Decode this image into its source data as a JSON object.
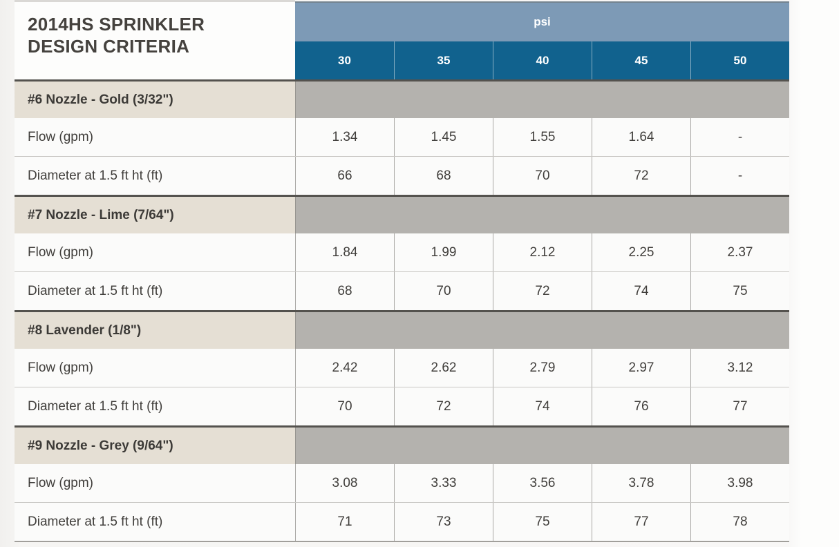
{
  "title": "2014HS SPRINKLER DESIGN CRITERIA",
  "header": {
    "group_label": "psi",
    "pressures": [
      "30",
      "35",
      "40",
      "45",
      "50"
    ]
  },
  "row_labels": {
    "flow": "Flow (gpm)",
    "diameter": "Diameter at 1.5 ft ht (ft)"
  },
  "sections": [
    {
      "label": "#6 Nozzle - Gold (3/32\")",
      "flow": [
        "1.34",
        "1.45",
        "1.55",
        "1.64",
        "-"
      ],
      "diameter": [
        "66",
        "68",
        "70",
        "72",
        "-"
      ]
    },
    {
      "label": "#7 Nozzle - Lime (7/64\")",
      "flow": [
        "1.84",
        "1.99",
        "2.12",
        "2.25",
        "2.37"
      ],
      "diameter": [
        "68",
        "70",
        "72",
        "74",
        "75"
      ]
    },
    {
      "label": "#8 Lavender (1/8\")",
      "flow": [
        "2.42",
        "2.62",
        "2.79",
        "2.97",
        "3.12"
      ],
      "diameter": [
        "70",
        "72",
        "74",
        "76",
        "77"
      ]
    },
    {
      "label": "#9 Nozzle - Grey (9/64\")",
      "flow": [
        "3.08",
        "3.33",
        "3.56",
        "3.78",
        "3.98"
      ],
      "diameter": [
        "71",
        "73",
        "75",
        "77",
        "78"
      ]
    }
  ],
  "colors": {
    "psi_band": "#7d9ab6",
    "pressure_band": "#11628e",
    "section_label_bg": "#e5dfd4",
    "section_data_bg": "#b4b2ae",
    "section_border": "#54524e",
    "table_bottom_border": "#a19f9b",
    "cell_bg": "#fbfbfa",
    "text": "#403e3b"
  }
}
